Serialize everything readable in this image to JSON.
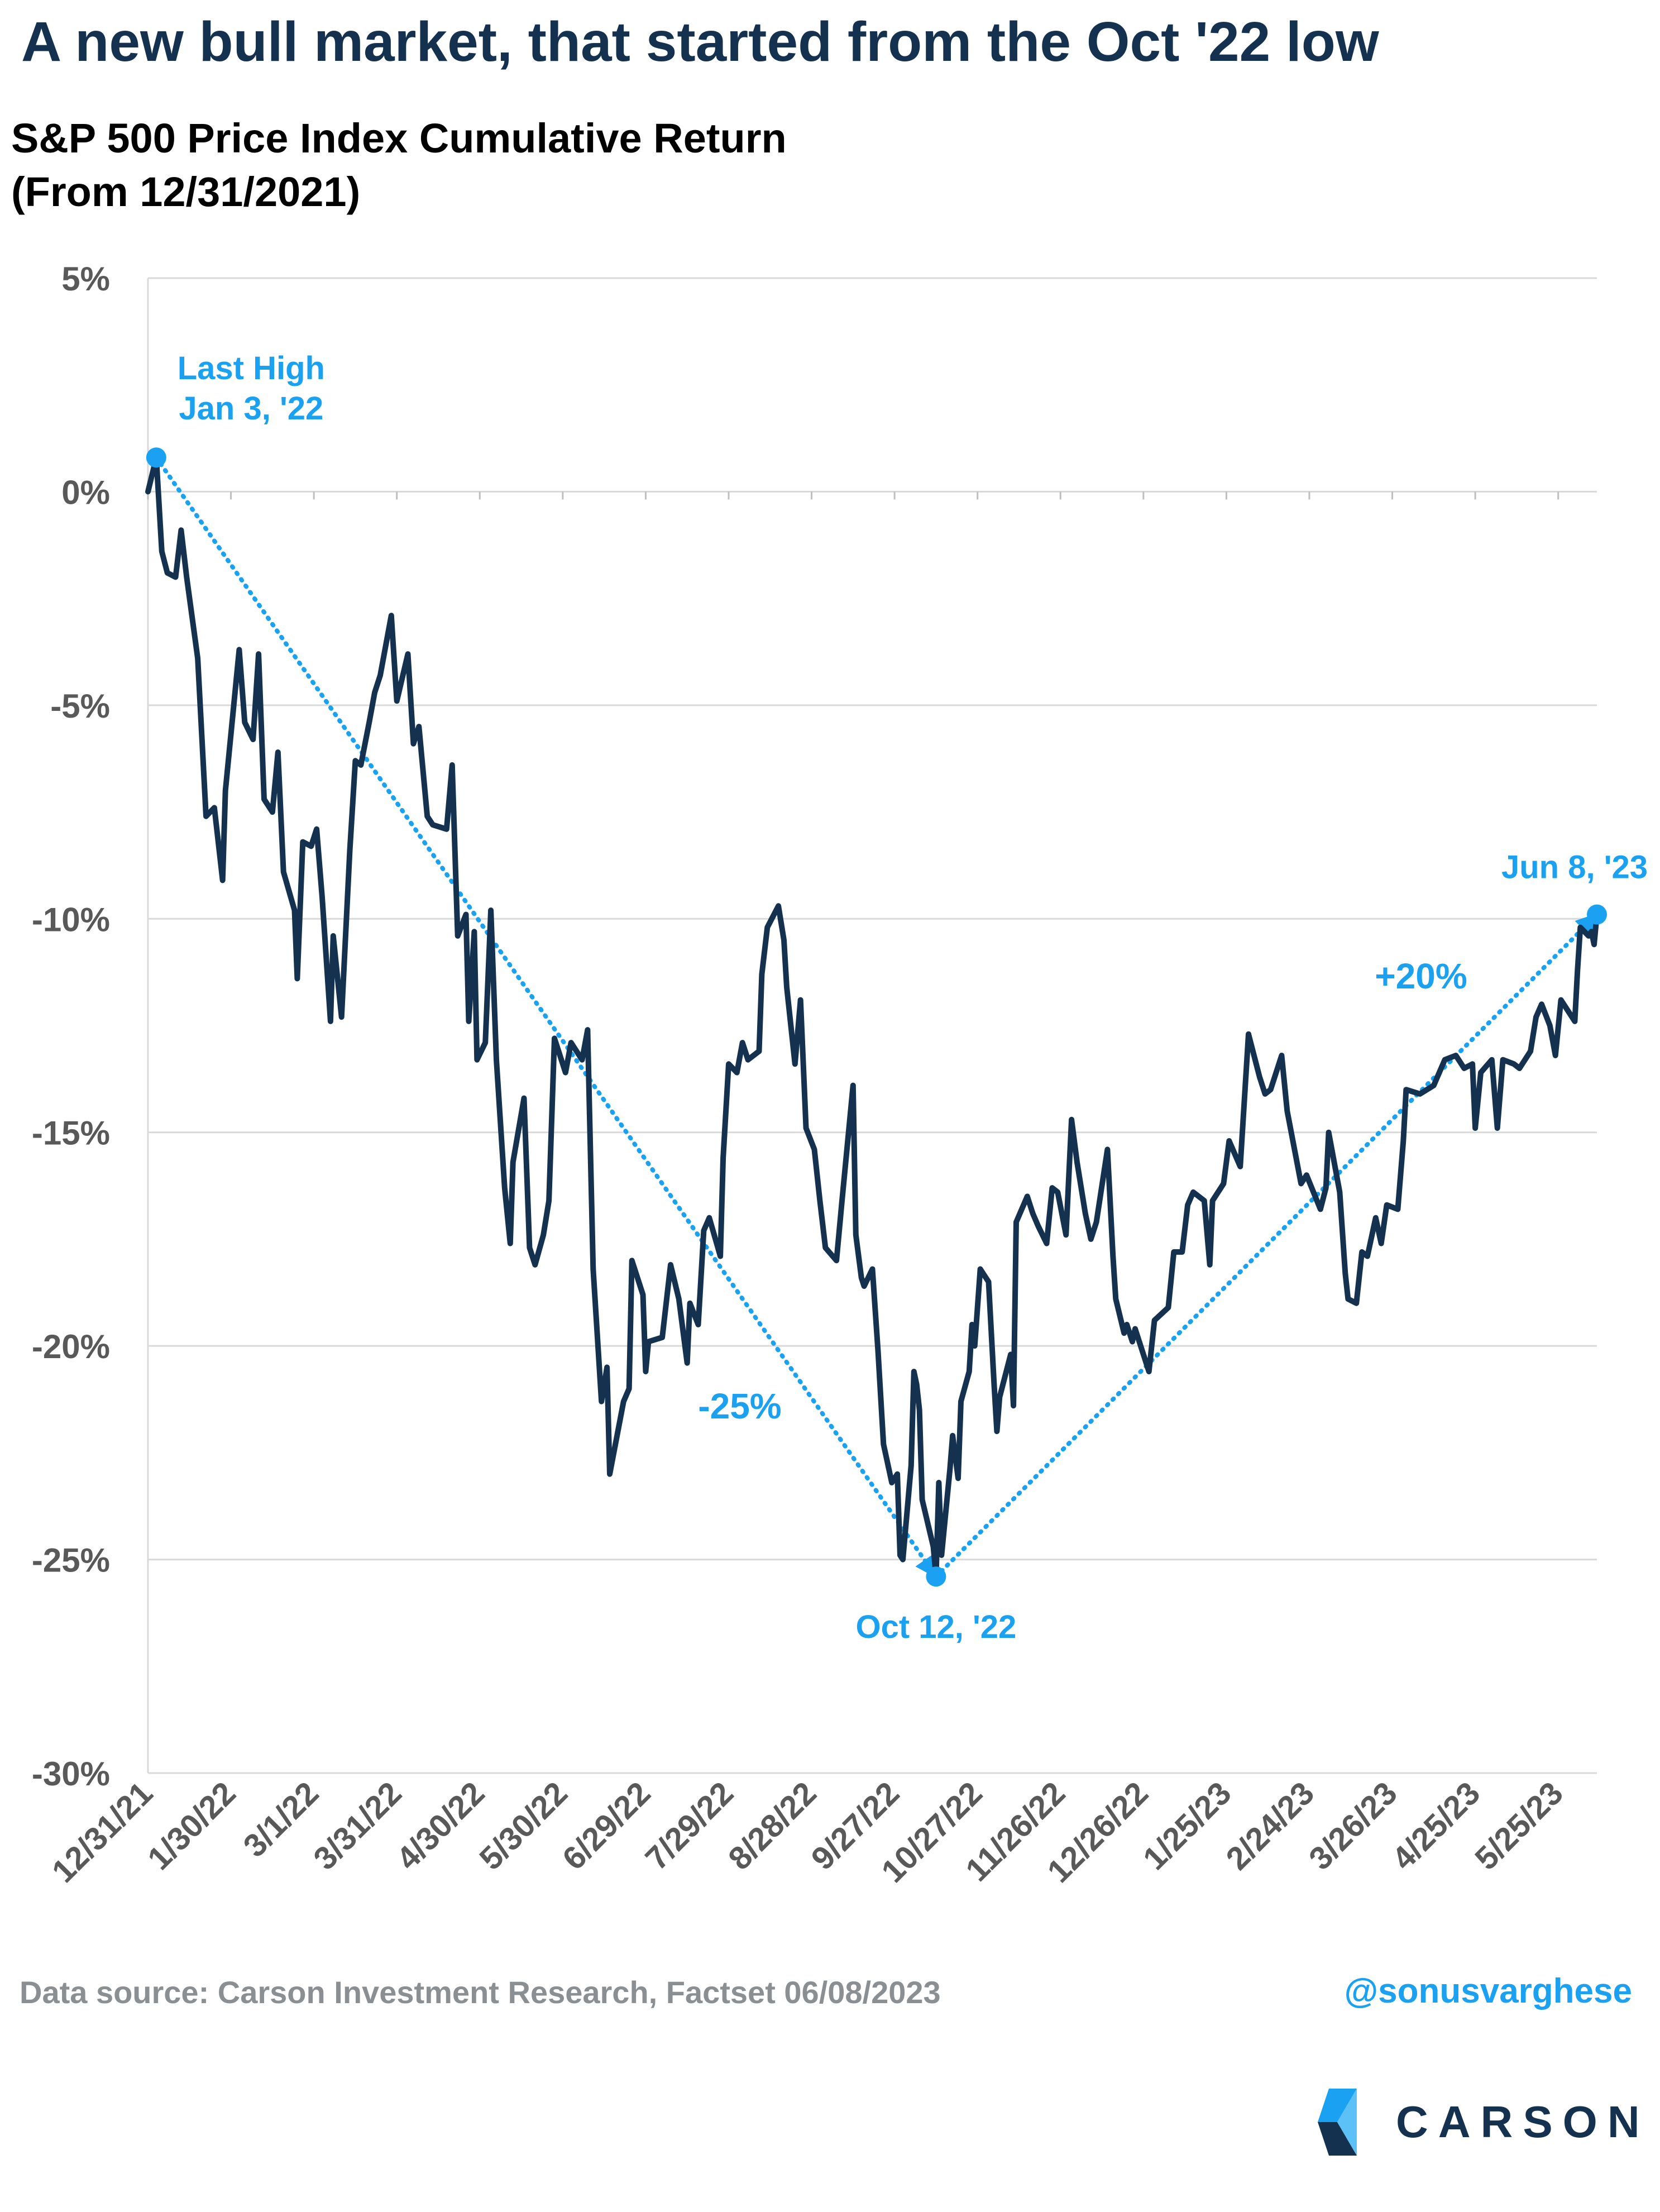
{
  "header": {
    "title": "A new bull market, that started from the Oct '22 low",
    "subtitle_line1": "S&P 500 Price Index Cumulative Return",
    "subtitle_line2": "(From 12/31/2021)"
  },
  "footer": {
    "source": "Data source: Carson Investment Research, Factset   06/08/2023",
    "handle": "@sonusvarghese",
    "logo_text": "CARSON"
  },
  "colors": {
    "line": "#14324f",
    "accent": "#1ba1f2",
    "grid": "#d9d9d9",
    "axis_text": "#595959"
  },
  "chart_data": {
    "type": "line",
    "title": "S&P 500 Price Index Cumulative Return (From 12/31/2021)",
    "xlabel": "",
    "ylabel": "",
    "ylim": [
      -30,
      5
    ],
    "xlim": [
      "2021-12-31",
      "2023-06-08"
    ],
    "grid": true,
    "ytick_labels": [
      "5%",
      "0%",
      "-5%",
      "-10%",
      "-15%",
      "-20%",
      "-25%",
      "-30%"
    ],
    "ytick_values": [
      5,
      0,
      -5,
      -10,
      -15,
      -20,
      -25,
      -30
    ],
    "xtick_labels": [
      "12/31/21",
      "1/30/22",
      "3/1/22",
      "3/31/22",
      "4/30/22",
      "5/30/22",
      "6/29/22",
      "7/29/22",
      "8/28/22",
      "9/27/22",
      "10/27/22",
      "11/26/22",
      "12/26/22",
      "1/25/23",
      "2/24/23",
      "3/26/23",
      "4/25/23",
      "5/25/23"
    ],
    "xtick_dates": [
      "2021-12-31",
      "2022-01-30",
      "2022-03-01",
      "2022-03-31",
      "2022-04-30",
      "2022-05-30",
      "2022-06-29",
      "2022-07-29",
      "2022-08-28",
      "2022-09-27",
      "2022-10-27",
      "2022-11-26",
      "2022-12-26",
      "2023-01-25",
      "2023-02-24",
      "2023-03-26",
      "2023-04-25",
      "2023-05-25"
    ],
    "series": [
      {
        "name": "",
        "points": [
          [
            "2021-12-31",
            0.0
          ],
          [
            "2022-01-03",
            0.8
          ],
          [
            "2022-01-05",
            -1.4
          ],
          [
            "2022-01-07",
            -1.9
          ],
          [
            "2022-01-10",
            -2.0
          ],
          [
            "2022-01-12",
            -0.9
          ],
          [
            "2022-01-14",
            -2.0
          ],
          [
            "2022-01-18",
            -3.9
          ],
          [
            "2022-01-21",
            -7.6
          ],
          [
            "2022-01-24",
            -7.4
          ],
          [
            "2022-01-27",
            -9.1
          ],
          [
            "2022-01-28",
            -7.0
          ],
          [
            "2022-02-02",
            -3.7
          ],
          [
            "2022-02-04",
            -5.4
          ],
          [
            "2022-02-07",
            -5.8
          ],
          [
            "2022-02-09",
            -3.8
          ],
          [
            "2022-02-11",
            -7.2
          ],
          [
            "2022-02-14",
            -7.5
          ],
          [
            "2022-02-16",
            -6.1
          ],
          [
            "2022-02-18",
            -8.9
          ],
          [
            "2022-02-22",
            -9.8
          ],
          [
            "2022-02-23",
            -11.4
          ],
          [
            "2022-02-25",
            -8.2
          ],
          [
            "2022-02-28",
            -8.3
          ],
          [
            "2022-03-02",
            -7.9
          ],
          [
            "2022-03-04",
            -9.5
          ],
          [
            "2022-03-07",
            -12.4
          ],
          [
            "2022-03-08",
            -10.4
          ],
          [
            "2022-03-11",
            -12.3
          ],
          [
            "2022-03-14",
            -8.4
          ],
          [
            "2022-03-16",
            -6.3
          ],
          [
            "2022-03-18",
            -6.4
          ],
          [
            "2022-03-21",
            -5.4
          ],
          [
            "2022-03-23",
            -4.7
          ],
          [
            "2022-03-25",
            -4.3
          ],
          [
            "2022-03-29",
            -2.9
          ],
          [
            "2022-03-31",
            -4.9
          ],
          [
            "2022-04-04",
            -3.8
          ],
          [
            "2022-04-06",
            -5.9
          ],
          [
            "2022-04-08",
            -5.5
          ],
          [
            "2022-04-11",
            -7.6
          ],
          [
            "2022-04-13",
            -7.8
          ],
          [
            "2022-04-18",
            -7.9
          ],
          [
            "2022-04-20",
            -6.4
          ],
          [
            "2022-04-22",
            -10.4
          ],
          [
            "2022-04-25",
            -9.9
          ],
          [
            "2022-04-26",
            -12.4
          ],
          [
            "2022-04-28",
            -10.3
          ],
          [
            "2022-04-29",
            -13.3
          ],
          [
            "2022-05-02",
            -12.9
          ],
          [
            "2022-05-04",
            -9.8
          ],
          [
            "2022-05-06",
            -13.3
          ],
          [
            "2022-05-09",
            -16.3
          ],
          [
            "2022-05-11",
            -17.6
          ],
          [
            "2022-05-12",
            -15.7
          ],
          [
            "2022-05-16",
            -14.2
          ],
          [
            "2022-05-18",
            -17.7
          ],
          [
            "2022-05-20",
            -18.1
          ],
          [
            "2022-05-23",
            -17.4
          ],
          [
            "2022-05-25",
            -16.6
          ],
          [
            "2022-05-27",
            -12.8
          ],
          [
            "2022-05-31",
            -13.6
          ],
          [
            "2022-06-02",
            -12.9
          ],
          [
            "2022-06-06",
            -13.3
          ],
          [
            "2022-06-08",
            -12.6
          ],
          [
            "2022-06-10",
            -18.2
          ],
          [
            "2022-06-13",
            -21.3
          ],
          [
            "2022-06-15",
            -20.5
          ],
          [
            "2022-06-16",
            -23.0
          ],
          [
            "2022-06-21",
            -21.3
          ],
          [
            "2022-06-23",
            -21.0
          ],
          [
            "2022-06-24",
            -18.0
          ],
          [
            "2022-06-28",
            -18.8
          ],
          [
            "2022-06-29",
            -20.6
          ],
          [
            "2022-06-30",
            -19.9
          ],
          [
            "2022-07-05",
            -19.8
          ],
          [
            "2022-07-08",
            -18.1
          ],
          [
            "2022-07-11",
            -18.9
          ],
          [
            "2022-07-14",
            -20.4
          ],
          [
            "2022-07-15",
            -19.0
          ],
          [
            "2022-07-18",
            -19.5
          ],
          [
            "2022-07-20",
            -17.3
          ],
          [
            "2022-07-22",
            -17.0
          ],
          [
            "2022-07-26",
            -17.9
          ],
          [
            "2022-07-27",
            -15.6
          ],
          [
            "2022-07-29",
            -13.4
          ],
          [
            "2022-08-01",
            -13.6
          ],
          [
            "2022-08-03",
            -12.9
          ],
          [
            "2022-08-05",
            -13.3
          ],
          [
            "2022-08-09",
            -13.1
          ],
          [
            "2022-08-10",
            -11.3
          ],
          [
            "2022-08-12",
            -10.2
          ],
          [
            "2022-08-16",
            -9.7
          ],
          [
            "2022-08-18",
            -10.5
          ],
          [
            "2022-08-19",
            -11.6
          ],
          [
            "2022-08-22",
            -13.4
          ],
          [
            "2022-08-24",
            -11.9
          ],
          [
            "2022-08-26",
            -14.9
          ],
          [
            "2022-08-29",
            -15.4
          ],
          [
            "2022-08-31",
            -16.6
          ],
          [
            "2022-09-02",
            -17.7
          ],
          [
            "2022-09-06",
            -18.0
          ],
          [
            "2022-09-08",
            -16.6
          ],
          [
            "2022-09-12",
            -13.9
          ],
          [
            "2022-09-13",
            -17.4
          ],
          [
            "2022-09-15",
            -18.4
          ],
          [
            "2022-09-16",
            -18.6
          ],
          [
            "2022-09-19",
            -18.2
          ],
          [
            "2022-09-21",
            -20.1
          ],
          [
            "2022-09-23",
            -22.3
          ],
          [
            "2022-09-26",
            -23.2
          ],
          [
            "2022-09-28",
            -23.0
          ],
          [
            "2022-09-29",
            -24.9
          ],
          [
            "2022-09-30",
            -25.0
          ],
          [
            "2022-10-03",
            -22.8
          ],
          [
            "2022-10-04",
            -20.6
          ],
          [
            "2022-10-05",
            -20.9
          ],
          [
            "2022-10-06",
            -21.5
          ],
          [
            "2022-10-07",
            -23.6
          ],
          [
            "2022-10-11",
            -24.7
          ],
          [
            "2022-10-12",
            -25.4
          ],
          [
            "2022-10-13",
            -23.2
          ],
          [
            "2022-10-14",
            -24.9
          ],
          [
            "2022-10-17",
            -22.9
          ],
          [
            "2022-10-18",
            -22.1
          ],
          [
            "2022-10-20",
            -23.1
          ],
          [
            "2022-10-21",
            -21.3
          ],
          [
            "2022-10-24",
            -20.6
          ],
          [
            "2022-10-25",
            -19.5
          ],
          [
            "2022-10-26",
            -20.0
          ],
          [
            "2022-10-28",
            -18.2
          ],
          [
            "2022-10-31",
            -18.5
          ],
          [
            "2022-11-02",
            -20.9
          ],
          [
            "2022-11-03",
            -22.0
          ],
          [
            "2022-11-04",
            -21.2
          ],
          [
            "2022-11-08",
            -20.2
          ],
          [
            "2022-11-09",
            -21.4
          ],
          [
            "2022-11-10",
            -17.1
          ],
          [
            "2022-11-14",
            -16.5
          ],
          [
            "2022-11-16",
            -16.9
          ],
          [
            "2022-11-18",
            -17.2
          ],
          [
            "2022-11-21",
            -17.6
          ],
          [
            "2022-11-23",
            -16.3
          ],
          [
            "2022-11-25",
            -16.4
          ],
          [
            "2022-11-28",
            -17.4
          ],
          [
            "2022-11-30",
            -14.7
          ],
          [
            "2022-12-02",
            -15.7
          ],
          [
            "2022-12-05",
            -16.9
          ],
          [
            "2022-12-07",
            -17.5
          ],
          [
            "2022-12-09",
            -17.1
          ],
          [
            "2022-12-13",
            -15.4
          ],
          [
            "2022-12-15",
            -17.9
          ],
          [
            "2022-12-16",
            -18.9
          ],
          [
            "2022-12-19",
            -19.7
          ],
          [
            "2022-12-20",
            -19.5
          ],
          [
            "2022-12-22",
            -19.9
          ],
          [
            "2022-12-23",
            -19.6
          ],
          [
            "2022-12-28",
            -20.6
          ],
          [
            "2022-12-30",
            -19.4
          ],
          [
            "2023-01-04",
            -19.1
          ],
          [
            "2023-01-06",
            -17.8
          ],
          [
            "2023-01-09",
            -17.8
          ],
          [
            "2023-01-11",
            -16.7
          ],
          [
            "2023-01-13",
            -16.4
          ],
          [
            "2023-01-17",
            -16.6
          ],
          [
            "2023-01-19",
            -18.1
          ],
          [
            "2023-01-20",
            -16.6
          ],
          [
            "2023-01-24",
            -16.2
          ],
          [
            "2023-01-26",
            -15.2
          ],
          [
            "2023-01-30",
            -15.8
          ],
          [
            "2023-02-02",
            -12.7
          ],
          [
            "2023-02-06",
            -13.7
          ],
          [
            "2023-02-08",
            -14.1
          ],
          [
            "2023-02-10",
            -14.0
          ],
          [
            "2023-02-14",
            -13.2
          ],
          [
            "2023-02-16",
            -14.5
          ],
          [
            "2023-02-21",
            -16.2
          ],
          [
            "2023-02-23",
            -16.0
          ],
          [
            "2023-02-28",
            -16.8
          ],
          [
            "2023-03-02",
            -16.3
          ],
          [
            "2023-03-03",
            -15.0
          ],
          [
            "2023-03-07",
            -16.4
          ],
          [
            "2023-03-09",
            -18.3
          ],
          [
            "2023-03-10",
            -18.9
          ],
          [
            "2023-03-13",
            -19.0
          ],
          [
            "2023-03-15",
            -17.8
          ],
          [
            "2023-03-17",
            -17.9
          ],
          [
            "2023-03-20",
            -17.0
          ],
          [
            "2023-03-22",
            -17.6
          ],
          [
            "2023-03-24",
            -16.7
          ],
          [
            "2023-03-28",
            -16.8
          ],
          [
            "2023-03-30",
            -15.2
          ],
          [
            "2023-03-31",
            -14.0
          ],
          [
            "2023-04-05",
            -14.1
          ],
          [
            "2023-04-10",
            -13.9
          ],
          [
            "2023-04-14",
            -13.3
          ],
          [
            "2023-04-18",
            -13.2
          ],
          [
            "2023-04-21",
            -13.5
          ],
          [
            "2023-04-24",
            -13.4
          ],
          [
            "2023-04-25",
            -14.9
          ],
          [
            "2023-04-27",
            -13.6
          ],
          [
            "2023-05-01",
            -13.3
          ],
          [
            "2023-05-03",
            -14.9
          ],
          [
            "2023-05-05",
            -13.3
          ],
          [
            "2023-05-09",
            -13.4
          ],
          [
            "2023-05-11",
            -13.5
          ],
          [
            "2023-05-15",
            -13.1
          ],
          [
            "2023-05-17",
            -12.3
          ],
          [
            "2023-05-19",
            -12.0
          ],
          [
            "2023-05-22",
            -12.5
          ],
          [
            "2023-05-24",
            -13.2
          ],
          [
            "2023-05-26",
            -11.9
          ],
          [
            "2023-05-31",
            -12.4
          ],
          [
            "2023-06-01",
            -11.2
          ],
          [
            "2023-06-02",
            -10.2
          ],
          [
            "2023-06-05",
            -10.4
          ],
          [
            "2023-06-06",
            -10.3
          ],
          [
            "2023-06-07",
            -10.6
          ],
          [
            "2023-06-08",
            -9.9
          ]
        ]
      }
    ],
    "markers": [
      {
        "date": "2022-01-03",
        "value": 0.8,
        "label_line1": "Last High",
        "label_line2": "Jan 3, '22"
      },
      {
        "date": "2022-10-12",
        "value": -25.4,
        "label_line1": "Oct 12, '22",
        "label_line2": ""
      },
      {
        "date": "2023-06-08",
        "value": -9.9,
        "label_line1": "Jun 8, '23",
        "label_line2": ""
      }
    ],
    "annotations": [
      {
        "text": "-25%",
        "from": "2022-01-03",
        "to": "2022-10-12"
      },
      {
        "text": "+20%",
        "from": "2022-10-12",
        "to": "2023-06-08"
      }
    ]
  }
}
